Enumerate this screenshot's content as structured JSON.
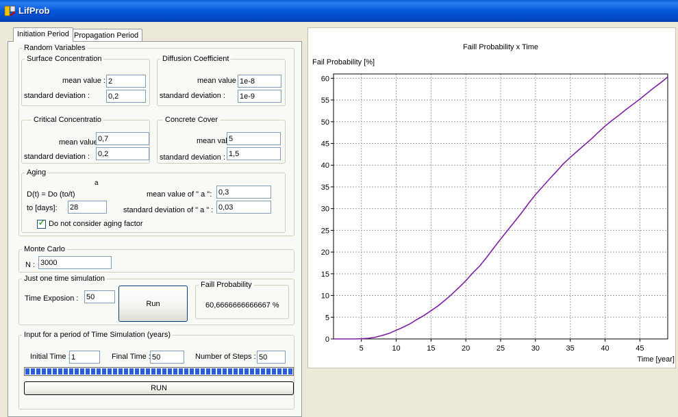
{
  "window": {
    "title": "LifProb",
    "icon": "app-icon"
  },
  "tabs": [
    {
      "label": "Initiation Period",
      "active": true
    },
    {
      "label": "Propagation Period",
      "active": false
    }
  ],
  "random_variables": {
    "legend": "Random Variables",
    "surface": {
      "legend": "Surface Concentration",
      "mean_label": "mean value :",
      "mean": "2",
      "sd_label": "standard deviation :",
      "sd": "0,2"
    },
    "diffusion": {
      "legend": "Diffusion Coefficient",
      "mean_label": "mean value :",
      "mean": "1e-8",
      "sd_label": "standard deviation :",
      "sd": "1e-9"
    },
    "critical": {
      "legend": "Critical Concentratio",
      "mean_label": "mean value :",
      "mean": "0,7",
      "sd_label": "standard deviation :",
      "sd": "0,2"
    },
    "cover": {
      "legend": "Concrete Cover",
      "mean_label": "mean value :",
      "mean": "5",
      "sd_label": "standard deviation :",
      "sd": "1,5"
    },
    "aging": {
      "legend": "Aging",
      "formula": "D(t) = Do (to/t)",
      "exponent": "a",
      "to_label": "to [days]:",
      "to": "28",
      "mean_a_label": "mean value of \" a \":",
      "mean_a": "0,3",
      "sd_a_label": "standard deviation of \" a \" :",
      "sd_a": "0,03",
      "checkbox_label": "Do not consider aging factor",
      "checked": true
    }
  },
  "monte_carlo": {
    "legend": "Monte Carlo",
    "n_label": "N :",
    "n": "3000"
  },
  "single": {
    "legend": "Just one time simulation",
    "time_label": "Time Exposion :",
    "time": "50",
    "run_label": "Run",
    "fail_legend": "Faill Probability",
    "fail_value": "60,6666666666667 %"
  },
  "period": {
    "legend": "Input for a period of Time Simulation  (years)",
    "initial_label": "Initial Time :",
    "initial": "1",
    "final_label": "Final Time :",
    "final": "50",
    "steps_label": "Number of Steps :",
    "steps": "50",
    "progress": 1.0,
    "run_label": "RUN"
  },
  "chart_data": {
    "type": "line",
    "title": "Faill Probability x Time",
    "ylabel": "Fail Probability [%]",
    "xlabel": "Time [year]",
    "xlim": [
      1,
      49
    ],
    "ylim": [
      0,
      61
    ],
    "x_ticks": [
      5,
      10,
      15,
      20,
      25,
      30,
      35,
      40,
      45
    ],
    "y_ticks": [
      0,
      5,
      10,
      15,
      20,
      25,
      30,
      35,
      40,
      45,
      50,
      55,
      60
    ],
    "grid": true,
    "colors": {
      "title": "#1f3fcf",
      "line": "#7b1fa2",
      "grid": "#a0a0a0"
    },
    "series": [
      {
        "x": [
          1,
          2,
          3,
          4,
          5,
          6,
          7,
          8,
          9,
          10,
          11,
          12,
          13,
          14,
          15,
          16,
          17,
          18,
          19,
          20,
          21,
          22,
          23,
          24,
          25,
          26,
          27,
          28,
          29,
          30,
          31,
          32,
          33,
          34,
          35,
          36,
          37,
          38,
          39,
          40,
          41,
          42,
          43,
          44,
          45,
          46,
          47,
          48,
          49
        ],
        "values": [
          0,
          0,
          0,
          0,
          0.05,
          0.15,
          0.4,
          0.8,
          1.3,
          2.0,
          2.7,
          3.5,
          4.5,
          5.4,
          6.5,
          7.6,
          8.9,
          10.3,
          11.8,
          13.4,
          15.2,
          16.8,
          18.8,
          20.9,
          23.0,
          25.0,
          27.0,
          29.0,
          31.2,
          33.2,
          35.0,
          36.8,
          38.5,
          40.3,
          41.8,
          43.2,
          44.6,
          46.0,
          47.5,
          49.0,
          50.3,
          51.5,
          52.8,
          54.0,
          55.2,
          56.5,
          57.8,
          59.0,
          60.3
        ]
      }
    ]
  }
}
